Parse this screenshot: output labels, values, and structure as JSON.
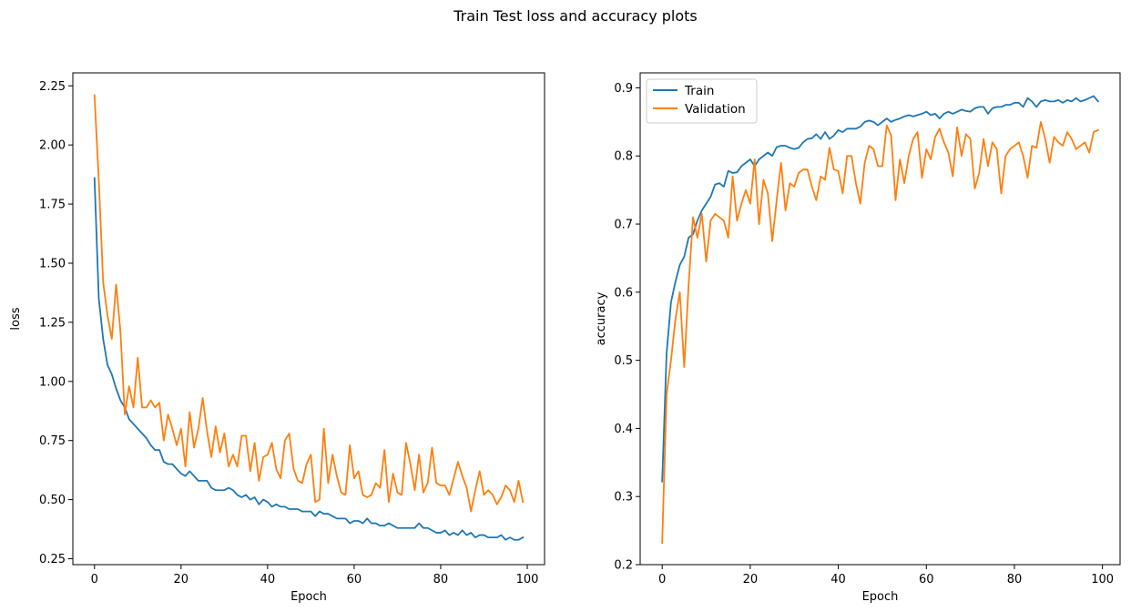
{
  "figure": {
    "title": "Train Test loss and accuracy plots"
  },
  "colors": {
    "train": "#1f77b4",
    "validation": "#ff7f0e",
    "axes": "#000000",
    "background": "#ffffff"
  },
  "chart_data": [
    {
      "type": "line",
      "title": "",
      "xlabel": "Epoch",
      "ylabel": "loss",
      "xlim": [
        -5,
        104
      ],
      "ylim": [
        0.225,
        2.305
      ],
      "xticks": [
        0,
        20,
        40,
        60,
        80,
        100
      ],
      "xtick_labels": [
        "0",
        "20",
        "40",
        "60",
        "80",
        "100"
      ],
      "yticks": [
        0.25,
        0.5,
        0.75,
        1.0,
        1.25,
        1.5,
        1.75,
        2.0,
        2.25
      ],
      "ytick_labels": [
        "0.25",
        "0.50",
        "0.75",
        "1.00",
        "1.25",
        "1.50",
        "1.75",
        "2.00",
        "2.25"
      ],
      "grid": false,
      "legend": null,
      "series": [
        {
          "color": "#1f77b4",
          "x": [
            0,
            1,
            2,
            3,
            4,
            5,
            6,
            7,
            8,
            9,
            10,
            11,
            12,
            13,
            14,
            15,
            16,
            17,
            18,
            19,
            20,
            21,
            22,
            23,
            24,
            25,
            26,
            27,
            28,
            29,
            30,
            31,
            32,
            33,
            34,
            35,
            36,
            37,
            38,
            39,
            40,
            41,
            42,
            43,
            44,
            45,
            46,
            47,
            48,
            49,
            50,
            51,
            52,
            53,
            54,
            55,
            56,
            57,
            58,
            59,
            60,
            61,
            62,
            63,
            64,
            65,
            66,
            67,
            68,
            69,
            70,
            71,
            72,
            73,
            74,
            75,
            76,
            77,
            78,
            79,
            80,
            81,
            82,
            83,
            84,
            85,
            86,
            87,
            88,
            89,
            90,
            91,
            92,
            93,
            94,
            95,
            96,
            97,
            98,
            99
          ],
          "y": [
            1.86,
            1.35,
            1.18,
            1.07,
            1.03,
            0.97,
            0.92,
            0.89,
            0.84,
            0.82,
            0.8,
            0.78,
            0.76,
            0.73,
            0.71,
            0.71,
            0.66,
            0.65,
            0.65,
            0.63,
            0.61,
            0.6,
            0.62,
            0.6,
            0.58,
            0.58,
            0.58,
            0.55,
            0.54,
            0.54,
            0.54,
            0.55,
            0.54,
            0.52,
            0.51,
            0.52,
            0.5,
            0.51,
            0.48,
            0.5,
            0.49,
            0.47,
            0.48,
            0.47,
            0.47,
            0.46,
            0.46,
            0.46,
            0.45,
            0.45,
            0.45,
            0.43,
            0.45,
            0.44,
            0.44,
            0.43,
            0.42,
            0.42,
            0.42,
            0.4,
            0.41,
            0.41,
            0.4,
            0.42,
            0.4,
            0.4,
            0.39,
            0.39,
            0.4,
            0.39,
            0.38,
            0.38,
            0.38,
            0.38,
            0.38,
            0.4,
            0.38,
            0.38,
            0.37,
            0.36,
            0.36,
            0.37,
            0.35,
            0.36,
            0.35,
            0.37,
            0.35,
            0.36,
            0.34,
            0.35,
            0.35,
            0.34,
            0.34,
            0.34,
            0.35,
            0.33,
            0.34,
            0.33,
            0.33,
            0.34
          ]
        },
        {
          "color": "#ff7f0e",
          "x": [
            0,
            1,
            2,
            3,
            4,
            5,
            6,
            7,
            8,
            9,
            10,
            11,
            12,
            13,
            14,
            15,
            16,
            17,
            18,
            19,
            20,
            21,
            22,
            23,
            24,
            25,
            26,
            27,
            28,
            29,
            30,
            31,
            32,
            33,
            34,
            35,
            36,
            37,
            38,
            39,
            40,
            41,
            42,
            43,
            44,
            45,
            46,
            47,
            48,
            49,
            50,
            51,
            52,
            53,
            54,
            55,
            56,
            57,
            58,
            59,
            60,
            61,
            62,
            63,
            64,
            65,
            66,
            67,
            68,
            69,
            70,
            71,
            72,
            73,
            74,
            75,
            76,
            77,
            78,
            79,
            80,
            81,
            82,
            83,
            84,
            85,
            86,
            87,
            88,
            89,
            90,
            91,
            92,
            93,
            94,
            95,
            96,
            97,
            98,
            99
          ],
          "y": [
            2.21,
            1.85,
            1.42,
            1.28,
            1.18,
            1.41,
            1.21,
            0.86,
            0.98,
            0.89,
            1.1,
            0.89,
            0.89,
            0.92,
            0.89,
            0.91,
            0.75,
            0.86,
            0.8,
            0.73,
            0.8,
            0.64,
            0.87,
            0.72,
            0.8,
            0.93,
            0.79,
            0.68,
            0.81,
            0.7,
            0.78,
            0.64,
            0.69,
            0.64,
            0.77,
            0.77,
            0.62,
            0.74,
            0.58,
            0.68,
            0.69,
            0.74,
            0.63,
            0.59,
            0.75,
            0.78,
            0.63,
            0.58,
            0.57,
            0.65,
            0.69,
            0.49,
            0.5,
            0.8,
            0.57,
            0.69,
            0.6,
            0.53,
            0.52,
            0.73,
            0.59,
            0.62,
            0.52,
            0.51,
            0.52,
            0.57,
            0.55,
            0.71,
            0.49,
            0.61,
            0.53,
            0.52,
            0.74,
            0.65,
            0.54,
            0.69,
            0.53,
            0.57,
            0.72,
            0.57,
            0.56,
            0.56,
            0.52,
            0.59,
            0.66,
            0.6,
            0.55,
            0.45,
            0.54,
            0.62,
            0.52,
            0.54,
            0.52,
            0.48,
            0.51,
            0.56,
            0.54,
            0.49,
            0.58,
            0.49
          ]
        }
      ]
    },
    {
      "type": "line",
      "title": "",
      "xlabel": "Epoch",
      "ylabel": "accuracy",
      "xlim": [
        -5,
        104
      ],
      "ylim": [
        0.2,
        0.922
      ],
      "xticks": [
        0,
        20,
        40,
        60,
        80,
        100
      ],
      "xtick_labels": [
        "0",
        "20",
        "40",
        "60",
        "80",
        "100"
      ],
      "yticks": [
        0.2,
        0.3,
        0.4,
        0.5,
        0.6,
        0.7,
        0.8,
        0.9
      ],
      "ytick_labels": [
        "0.2",
        "0.3",
        "0.4",
        "0.5",
        "0.6",
        "0.7",
        "0.8",
        "0.9"
      ],
      "grid": false,
      "legend": "top-left",
      "series": [
        {
          "name": "Train",
          "color": "#1f77b4",
          "x": [
            0,
            1,
            2,
            3,
            4,
            5,
            6,
            7,
            8,
            9,
            10,
            11,
            12,
            13,
            14,
            15,
            16,
            17,
            18,
            19,
            20,
            21,
            22,
            23,
            24,
            25,
            26,
            27,
            28,
            29,
            30,
            31,
            32,
            33,
            34,
            35,
            36,
            37,
            38,
            39,
            40,
            41,
            42,
            43,
            44,
            45,
            46,
            47,
            48,
            49,
            50,
            51,
            52,
            53,
            54,
            55,
            56,
            57,
            58,
            59,
            60,
            61,
            62,
            63,
            64,
            65,
            66,
            67,
            68,
            69,
            70,
            71,
            72,
            73,
            74,
            75,
            76,
            77,
            78,
            79,
            80,
            81,
            82,
            83,
            84,
            85,
            86,
            87,
            88,
            89,
            90,
            91,
            92,
            93,
            94,
            95,
            96,
            97,
            98,
            99
          ],
          "y": [
            0.322,
            0.51,
            0.585,
            0.615,
            0.64,
            0.652,
            0.68,
            0.685,
            0.705,
            0.72,
            0.73,
            0.74,
            0.758,
            0.76,
            0.755,
            0.778,
            0.775,
            0.776,
            0.785,
            0.79,
            0.795,
            0.785,
            0.795,
            0.8,
            0.805,
            0.8,
            0.813,
            0.815,
            0.815,
            0.812,
            0.81,
            0.812,
            0.82,
            0.825,
            0.826,
            0.832,
            0.825,
            0.835,
            0.825,
            0.83,
            0.838,
            0.835,
            0.84,
            0.84,
            0.84,
            0.843,
            0.85,
            0.852,
            0.85,
            0.845,
            0.85,
            0.855,
            0.85,
            0.853,
            0.855,
            0.858,
            0.86,
            0.858,
            0.86,
            0.862,
            0.865,
            0.86,
            0.862,
            0.855,
            0.862,
            0.865,
            0.862,
            0.865,
            0.868,
            0.866,
            0.865,
            0.87,
            0.872,
            0.872,
            0.862,
            0.87,
            0.872,
            0.872,
            0.875,
            0.875,
            0.878,
            0.878,
            0.872,
            0.885,
            0.88,
            0.872,
            0.88,
            0.882,
            0.88,
            0.88,
            0.882,
            0.878,
            0.882,
            0.88,
            0.885,
            0.88,
            0.882,
            0.885,
            0.888,
            0.88
          ]
        },
        {
          "name": "Validation",
          "color": "#ff7f0e",
          "x": [
            0,
            1,
            2,
            3,
            4,
            5,
            6,
            7,
            8,
            9,
            10,
            11,
            12,
            13,
            14,
            15,
            16,
            17,
            18,
            19,
            20,
            21,
            22,
            23,
            24,
            25,
            26,
            27,
            28,
            29,
            30,
            31,
            32,
            33,
            34,
            35,
            36,
            37,
            38,
            39,
            40,
            41,
            42,
            43,
            44,
            45,
            46,
            47,
            48,
            49,
            50,
            51,
            52,
            53,
            54,
            55,
            56,
            57,
            58,
            59,
            60,
            61,
            62,
            63,
            64,
            65,
            66,
            67,
            68,
            69,
            70,
            71,
            72,
            73,
            74,
            75,
            76,
            77,
            78,
            79,
            80,
            81,
            82,
            83,
            84,
            85,
            86,
            87,
            88,
            89,
            90,
            91,
            92,
            93,
            94,
            95,
            96,
            97,
            98,
            99
          ],
          "y": [
            0.232,
            0.45,
            0.5,
            0.56,
            0.6,
            0.49,
            0.61,
            0.71,
            0.68,
            0.715,
            0.645,
            0.705,
            0.715,
            0.71,
            0.705,
            0.68,
            0.77,
            0.705,
            0.73,
            0.75,
            0.73,
            0.795,
            0.7,
            0.765,
            0.745,
            0.675,
            0.735,
            0.79,
            0.72,
            0.76,
            0.755,
            0.775,
            0.78,
            0.78,
            0.755,
            0.735,
            0.77,
            0.765,
            0.812,
            0.78,
            0.778,
            0.745,
            0.8,
            0.8,
            0.76,
            0.73,
            0.79,
            0.815,
            0.81,
            0.785,
            0.785,
            0.845,
            0.83,
            0.735,
            0.795,
            0.76,
            0.8,
            0.825,
            0.835,
            0.768,
            0.81,
            0.795,
            0.828,
            0.84,
            0.82,
            0.805,
            0.77,
            0.842,
            0.8,
            0.832,
            0.825,
            0.752,
            0.775,
            0.825,
            0.785,
            0.82,
            0.81,
            0.745,
            0.8,
            0.81,
            0.815,
            0.82,
            0.8,
            0.768,
            0.815,
            0.812,
            0.85,
            0.825,
            0.79,
            0.828,
            0.82,
            0.815,
            0.835,
            0.825,
            0.81,
            0.815,
            0.82,
            0.805,
            0.835,
            0.838
          ]
        }
      ]
    }
  ]
}
